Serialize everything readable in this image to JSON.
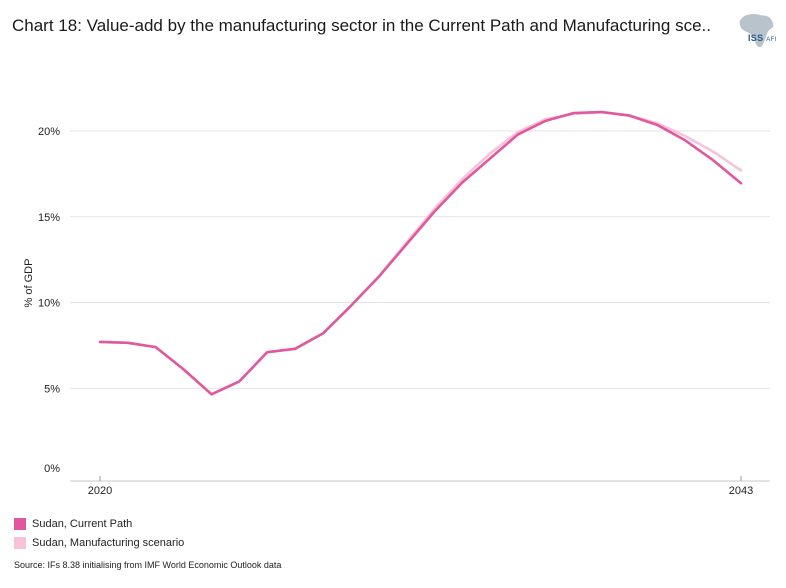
{
  "title": "Chart 18: Value-add by the manufacturing sector in the Current Path and Manufacturing sce..",
  "logo": {
    "text": "ISS",
    "sub": "AFI"
  },
  "source": "Source: IFs 8.38 initialising from IMF World Economic Outlook data",
  "colors": {
    "current_path": "#e0589e",
    "manufacturing": "#f7c2da",
    "grid": "#e3e3e3"
  },
  "chart_data": {
    "type": "line",
    "title": "Chart 18: Value-add by the manufacturing sector in the Current Path and Manufacturing sce..",
    "ylabel": "% of GDP",
    "xlabel": "",
    "x": [
      2020,
      2021,
      2022,
      2023,
      2024,
      2025,
      2026,
      2027,
      2028,
      2029,
      2030,
      2031,
      2032,
      2033,
      2034,
      2035,
      2036,
      2037,
      2038,
      2039,
      2040,
      2041,
      2042,
      2043
    ],
    "x_ticks": [
      {
        "value": 2020,
        "label": "2020"
      },
      {
        "value": 2043,
        "label": "2043"
      }
    ],
    "ylim": [
      0,
      22
    ],
    "y_ticks": [
      {
        "value": 0,
        "label": "0%"
      },
      {
        "value": 5,
        "label": "5%"
      },
      {
        "value": 10,
        "label": "10%"
      },
      {
        "value": 15,
        "label": "15%"
      },
      {
        "value": 20,
        "label": "20%"
      }
    ],
    "grid": true,
    "legend": "bottom-left",
    "series": [
      {
        "name": "Sudan, Manufacturing scenario",
        "color": "#f7c2da",
        "values": [
          7.7,
          7.65,
          7.4,
          6.1,
          4.65,
          5.4,
          7.1,
          7.3,
          8.2,
          9.8,
          11.5,
          13.5,
          15.45,
          17.2,
          18.7,
          19.95,
          20.7,
          21.0,
          21.1,
          20.9,
          20.45,
          19.7,
          18.8,
          17.7
        ],
        "values_stop_note": ""
      },
      {
        "name": "Sudan, Current Path",
        "color": "#e0589e",
        "values": [
          7.7,
          7.65,
          7.4,
          6.1,
          4.65,
          5.4,
          7.1,
          7.3,
          8.2,
          9.8,
          11.5,
          13.4,
          15.3,
          17.0,
          18.4,
          19.8,
          20.6,
          21.05,
          21.1,
          20.9,
          20.35,
          19.45,
          18.3,
          16.95
        ]
      }
    ]
  }
}
